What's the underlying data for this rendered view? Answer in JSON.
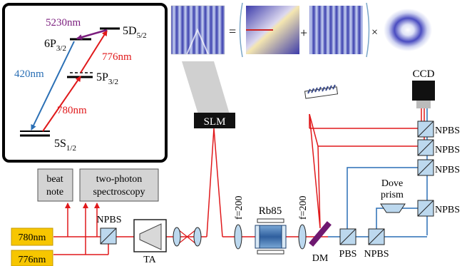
{
  "energy_levels": {
    "state_5s": {
      "main": "5S",
      "sub": "1/2"
    },
    "state_5p": {
      "main": "5P",
      "sub": "3/2"
    },
    "state_6p": {
      "main": "6P",
      "sub": "3/2"
    },
    "state_5d": {
      "main": "5D",
      "sub": "5/2"
    },
    "wl_5230": "5230nm",
    "wl_420": "420nm",
    "wl_776": "776nm",
    "wl_780": "780nm"
  },
  "equation": {
    "equals": "=",
    "plus": "+",
    "times": "×"
  },
  "boxes": {
    "beat_note": [
      "beat",
      "note"
    ],
    "two_photon": [
      "two-photon",
      "spectroscopy"
    ],
    "laser_780": "780nm",
    "laser_776": "776nm"
  },
  "labels": {
    "slm": "SLM",
    "ccd": "CCD",
    "ta": "TA",
    "rb85": "Rb85",
    "f200_a": "f=200",
    "f200_b": "f=200",
    "dove": [
      "Dove",
      "prism"
    ],
    "dm": "DM",
    "pbs": "PBS",
    "npbs": "NPBS"
  },
  "colors": {
    "red": "#e0191b",
    "blue": "#2a6fb5",
    "purple": "#7b1e7e",
    "laser_box": "#f7c600",
    "gray_box": "#d4d4d4",
    "optic_blue": "#bcd8ee"
  }
}
